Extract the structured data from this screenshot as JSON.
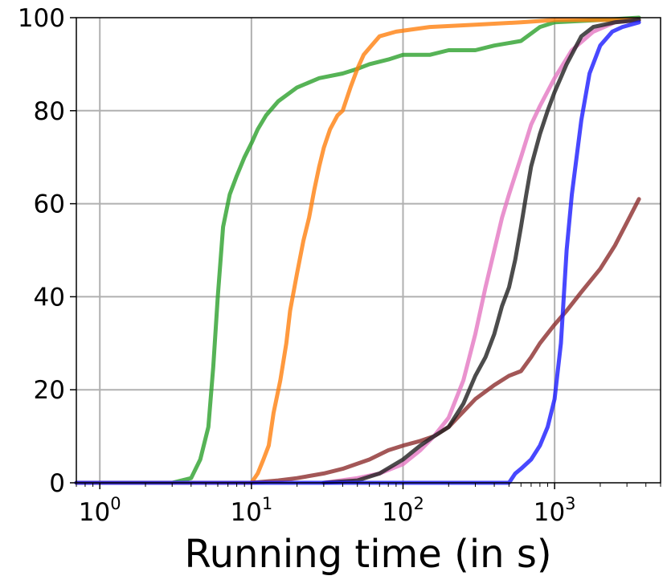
{
  "chart_data": {
    "type": "line",
    "title": "",
    "xlabel": "Running time (in s)",
    "ylabel": "",
    "xscale": "log",
    "xlim": [
      0.7,
      5000
    ],
    "ylim": [
      0,
      100
    ],
    "grid": true,
    "legend": "none",
    "xticks": [
      {
        "value": 1,
        "base": "10",
        "exp": "0"
      },
      {
        "value": 10,
        "base": "10",
        "exp": "1"
      },
      {
        "value": 100,
        "base": "10",
        "exp": "2"
      },
      {
        "value": 1000,
        "base": "10",
        "exp": "3"
      }
    ],
    "yticks": [
      {
        "value": 0,
        "label": "0"
      },
      {
        "value": 20,
        "label": "20"
      },
      {
        "value": 40,
        "label": "40"
      },
      {
        "value": 60,
        "label": "60"
      },
      {
        "value": 80,
        "label": "80"
      },
      {
        "value": 100,
        "label": "100"
      }
    ],
    "series": [
      {
        "color": "#2ca02c",
        "points": [
          [
            0.7,
            0
          ],
          [
            3,
            0
          ],
          [
            4,
            1
          ],
          [
            4.6,
            5
          ],
          [
            5.2,
            12
          ],
          [
            5.6,
            25
          ],
          [
            6.0,
            40
          ],
          [
            6.5,
            55
          ],
          [
            7.2,
            62
          ],
          [
            8,
            66
          ],
          [
            9,
            70
          ],
          [
            10,
            73
          ],
          [
            11,
            76
          ],
          [
            12.5,
            79
          ],
          [
            15,
            82
          ],
          [
            20,
            85
          ],
          [
            28,
            87
          ],
          [
            40,
            88
          ],
          [
            50,
            89
          ],
          [
            60,
            90
          ],
          [
            80,
            91
          ],
          [
            100,
            92
          ],
          [
            150,
            92
          ],
          [
            200,
            93
          ],
          [
            300,
            93
          ],
          [
            400,
            94
          ],
          [
            600,
            95
          ],
          [
            800,
            98
          ],
          [
            1000,
            99
          ],
          [
            2000,
            99.5
          ],
          [
            3600,
            100
          ]
        ]
      },
      {
        "color": "#ff7f0e",
        "points": [
          [
            0.7,
            0
          ],
          [
            8,
            0
          ],
          [
            10,
            0
          ],
          [
            11,
            2
          ],
          [
            12,
            5
          ],
          [
            13,
            8
          ],
          [
            14,
            15
          ],
          [
            15.5,
            22
          ],
          [
            17,
            30
          ],
          [
            18,
            37
          ],
          [
            20,
            45
          ],
          [
            22,
            52
          ],
          [
            24,
            57
          ],
          [
            26,
            63
          ],
          [
            28,
            68
          ],
          [
            30,
            72
          ],
          [
            33,
            76
          ],
          [
            37,
            79
          ],
          [
            40,
            80
          ],
          [
            45,
            85
          ],
          [
            50,
            89
          ],
          [
            55,
            92
          ],
          [
            62,
            94
          ],
          [
            70,
            96
          ],
          [
            90,
            97
          ],
          [
            150,
            98
          ],
          [
            300,
            98.5
          ],
          [
            600,
            99
          ],
          [
            1000,
            99.5
          ],
          [
            2000,
            99.5
          ],
          [
            3600,
            99.5
          ]
        ]
      },
      {
        "color": "#8c2d2d",
        "points": [
          [
            10,
            0
          ],
          [
            15,
            0.5
          ],
          [
            20,
            1
          ],
          [
            30,
            2
          ],
          [
            40,
            3
          ],
          [
            60,
            5
          ],
          [
            80,
            7
          ],
          [
            100,
            8
          ],
          [
            130,
            9
          ],
          [
            160,
            10
          ],
          [
            200,
            12
          ],
          [
            300,
            18
          ],
          [
            400,
            21
          ],
          [
            500,
            23
          ],
          [
            600,
            24
          ],
          [
            700,
            27
          ],
          [
            800,
            30
          ],
          [
            1000,
            34
          ],
          [
            1200,
            37
          ],
          [
            1500,
            41
          ],
          [
            2000,
            46
          ],
          [
            2500,
            51
          ],
          [
            3000,
            56
          ],
          [
            3600,
            61
          ]
        ]
      },
      {
        "color": "#e377c2",
        "points": [
          [
            30,
            0
          ],
          [
            50,
            1
          ],
          [
            70,
            2
          ],
          [
            100,
            4
          ],
          [
            130,
            7
          ],
          [
            160,
            10
          ],
          [
            200,
            14
          ],
          [
            250,
            22
          ],
          [
            300,
            32
          ],
          [
            350,
            42
          ],
          [
            400,
            50
          ],
          [
            450,
            57
          ],
          [
            500,
            62
          ],
          [
            600,
            70
          ],
          [
            700,
            77
          ],
          [
            800,
            81
          ],
          [
            1000,
            87
          ],
          [
            1300,
            93
          ],
          [
            1800,
            97
          ],
          [
            2500,
            99
          ],
          [
            3600,
            99.5
          ]
        ]
      },
      {
        "color": "#1f1f1f",
        "points": [
          [
            30,
            0
          ],
          [
            50,
            0.5
          ],
          [
            70,
            2
          ],
          [
            100,
            5
          ],
          [
            130,
            8
          ],
          [
            160,
            10
          ],
          [
            200,
            12
          ],
          [
            250,
            17
          ],
          [
            300,
            23
          ],
          [
            350,
            27
          ],
          [
            400,
            32
          ],
          [
            450,
            38
          ],
          [
            500,
            42
          ],
          [
            550,
            48
          ],
          [
            600,
            55
          ],
          [
            650,
            62
          ],
          [
            700,
            68
          ],
          [
            800,
            75
          ],
          [
            900,
            80
          ],
          [
            1000,
            84
          ],
          [
            1200,
            90
          ],
          [
            1500,
            96
          ],
          [
            1800,
            98
          ],
          [
            2500,
            99
          ],
          [
            3600,
            99.5
          ]
        ]
      },
      {
        "color": "#1a1aff",
        "points": [
          [
            0.7,
            0
          ],
          [
            500,
            0
          ],
          [
            550,
            2
          ],
          [
            600,
            3
          ],
          [
            700,
            5
          ],
          [
            800,
            8
          ],
          [
            900,
            12
          ],
          [
            1000,
            18
          ],
          [
            1100,
            30
          ],
          [
            1200,
            50
          ],
          [
            1300,
            62
          ],
          [
            1500,
            78
          ],
          [
            1700,
            88
          ],
          [
            2000,
            94
          ],
          [
            2400,
            97
          ],
          [
            2800,
            98
          ],
          [
            3600,
            99
          ]
        ]
      }
    ]
  }
}
